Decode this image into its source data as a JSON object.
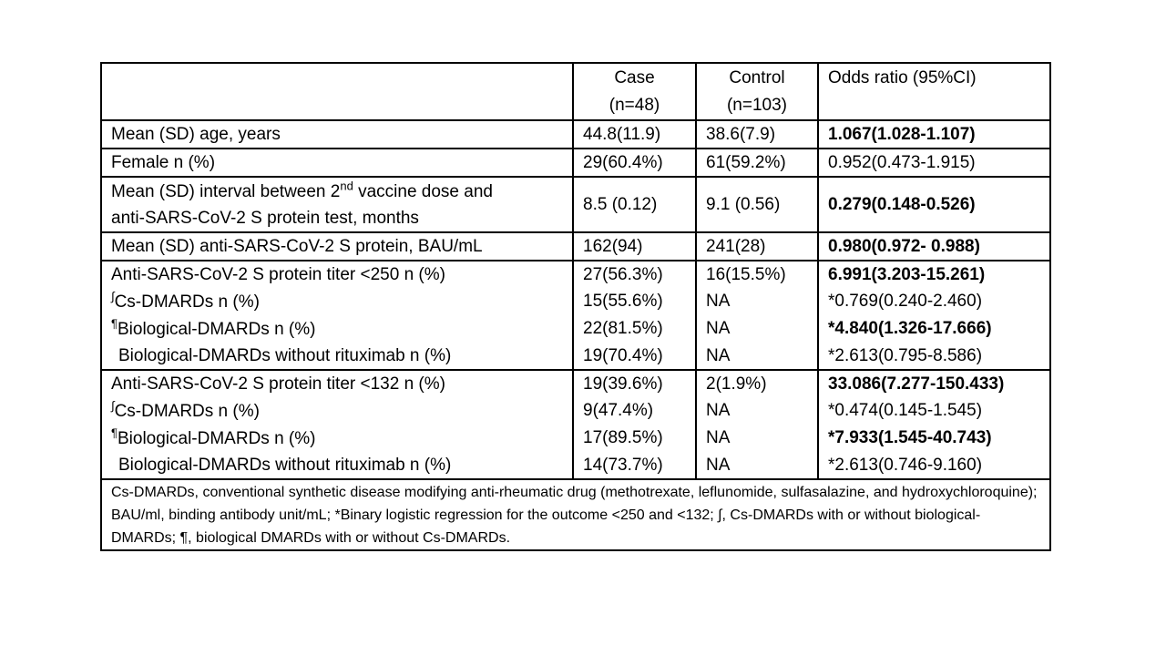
{
  "table": {
    "header": {
      "row_label": "",
      "case_line1": "Case",
      "case_line2": "(n=48)",
      "control_line1": "Control",
      "control_line2": "(n=103)",
      "odds_ratio": "Odds ratio (95%CI)"
    },
    "rows": [
      {
        "segments": [
          {
            "t": "Mean (SD) age, years"
          }
        ],
        "case": "44.8(11.9)",
        "control": "38.6(7.9)",
        "odds_ratio": "1.067(1.028-1.107)",
        "odds_bold": true,
        "section_start": true,
        "tall": false,
        "indent": false
      },
      {
        "segments": [
          {
            "t": "Female n (%)"
          }
        ],
        "case": "29(60.4%)",
        "control": "61(59.2%)",
        "odds_ratio": "0.952(0.473-1.915)",
        "odds_bold": false,
        "section_start": true,
        "tall": false,
        "indent": false
      },
      {
        "segments": [
          {
            "t": "Mean (SD) interval between 2"
          },
          {
            "sup": "nd"
          },
          {
            "t": " vaccine dose and"
          },
          {
            "br": true
          },
          {
            "t": "anti-SARS-CoV-2 S protein test, months"
          }
        ],
        "case": "8.5 (0.12)",
        "control": "9.1 (0.56)",
        "odds_ratio": "0.279(0.148-0.526)",
        "odds_bold": true,
        "section_start": true,
        "tall": true,
        "indent": false
      },
      {
        "segments": [
          {
            "t": "Mean (SD) anti-SARS-CoV-2 S protein, BAU/mL"
          }
        ],
        "case": "162(94)",
        "control": "241(28)",
        "odds_ratio": "0.980(0.972- 0.988)",
        "odds_bold": true,
        "section_start": true,
        "tall": false,
        "indent": false
      },
      {
        "segments": [
          {
            "t": "Anti-SARS-CoV-2 S protein titer <250 n (%)"
          }
        ],
        "case": "27(56.3%)",
        "control": "16(15.5%)",
        "odds_ratio": "6.991(3.203-15.261)",
        "odds_bold": true,
        "section_start": true,
        "tall": false,
        "indent": false
      },
      {
        "segments": [
          {
            "sup": "∫"
          },
          {
            "t": "Cs-DMARDs n (%)"
          }
        ],
        "case": "15(55.6%)",
        "control": "NA",
        "odds_ratio": "*0.769(0.240-2.460)",
        "odds_bold": false,
        "section_start": false,
        "tall": false,
        "indent": false
      },
      {
        "segments": [
          {
            "sup": "¶"
          },
          {
            "t": "Biological-DMARDs n (%)"
          }
        ],
        "case": "22(81.5%)",
        "control": "NA",
        "odds_ratio": "*4.840(1.326-17.666)",
        "odds_bold": true,
        "section_start": false,
        "tall": false,
        "indent": false
      },
      {
        "segments": [
          {
            "t": "Biological-DMARDs without rituximab n (%)"
          }
        ],
        "case": "19(70.4%)",
        "control": "NA",
        "odds_ratio": "*2.613(0.795-8.586)",
        "odds_bold": false,
        "section_start": false,
        "tall": false,
        "indent": true
      },
      {
        "segments": [
          {
            "t": "Anti-SARS-CoV-2 S protein titer <132 n (%)"
          }
        ],
        "case": "19(39.6%)",
        "control": "2(1.9%)",
        "odds_ratio": "33.086(7.277-150.433)",
        "odds_bold": true,
        "section_start": true,
        "tall": false,
        "indent": false
      },
      {
        "segments": [
          {
            "sup": "∫"
          },
          {
            "t": "Cs-DMARDs n (%)"
          }
        ],
        "case": "9(47.4%)",
        "control": "NA",
        "odds_ratio": "*0.474(0.145-1.545)",
        "odds_bold": false,
        "section_start": false,
        "tall": false,
        "indent": false
      },
      {
        "segments": [
          {
            "sup": "¶"
          },
          {
            "t": "Biological-DMARDs n (%)"
          }
        ],
        "case": "17(89.5%)",
        "control": "NA",
        "odds_ratio": "*7.933(1.545-40.743)",
        "odds_bold": true,
        "section_start": false,
        "tall": false,
        "indent": false
      },
      {
        "segments": [
          {
            "t": "Biological-DMARDs without rituximab n (%)"
          }
        ],
        "case": "14(73.7%)",
        "control": "NA",
        "odds_ratio": "*2.613(0.746-9.160)",
        "odds_bold": false,
        "section_start": false,
        "tall": false,
        "indent": true
      }
    ],
    "footnote": "Cs-DMARDs, conventional synthetic disease modifying anti-rheumatic drug (methotrexate, leflunomide, sulfasalazine, and hydroxychloroquine); BAU/ml, binding antibody unit/mL; *Binary logistic regression for the outcome <250 and <132; ∫, Cs-DMARDs with or without biological-DMARDs; ¶, biological DMARDs with or without Cs-DMARDs."
  },
  "colors": {
    "border": "#000000",
    "text": "#000000",
    "background": "#ffffff",
    "bold_emphasis": "#000000"
  }
}
